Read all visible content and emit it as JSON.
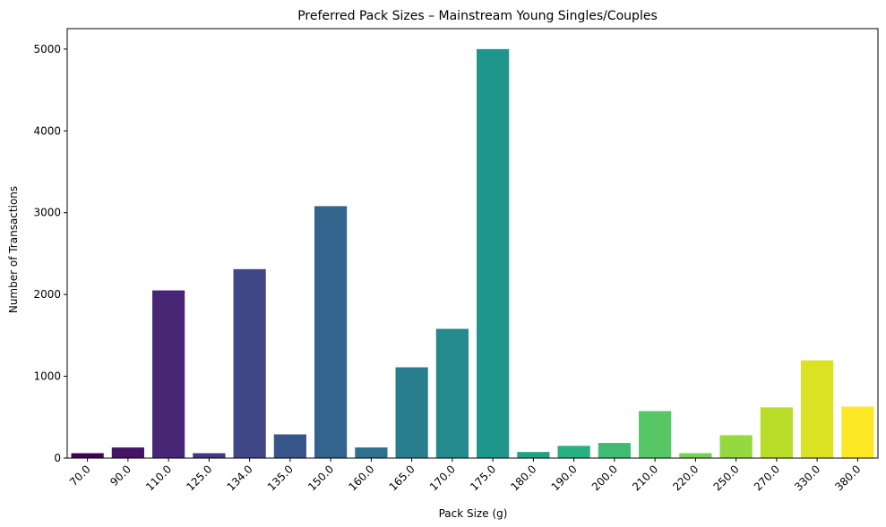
{
  "chart_data": {
    "type": "bar",
    "title": "Preferred Pack Sizes – Mainstream Young Singles/Couples",
    "xlabel": "Pack Size (g)",
    "ylabel": "Number of Transactions",
    "categories": [
      "70.0",
      "90.0",
      "110.0",
      "125.0",
      "134.0",
      "135.0",
      "150.0",
      "160.0",
      "165.0",
      "170.0",
      "175.0",
      "180.0",
      "190.0",
      "200.0",
      "210.0",
      "220.0",
      "250.0",
      "270.0",
      "330.0",
      "380.0"
    ],
    "values": [
      60,
      130,
      2050,
      60,
      2310,
      290,
      3080,
      130,
      1110,
      1580,
      5000,
      75,
      150,
      185,
      575,
      60,
      280,
      620,
      1195,
      630
    ],
    "colors": [
      "#440154",
      "#482173",
      "#433e85",
      "#38598c",
      "#2d708e",
      "#25858e",
      "#1e9b8a",
      "#2ab07f",
      "#52c569",
      "#86d549",
      "#c2df23",
      "#fde725"
    ],
    "ylim": [
      0,
      5250
    ],
    "yticks": [
      0,
      1000,
      2000,
      3000,
      4000,
      5000
    ],
    "ytick_labels": [
      "0",
      "1000",
      "2000",
      "3000",
      "4000",
      "5000"
    ],
    "grid": false,
    "legend": "none",
    "palette": "viridis"
  }
}
